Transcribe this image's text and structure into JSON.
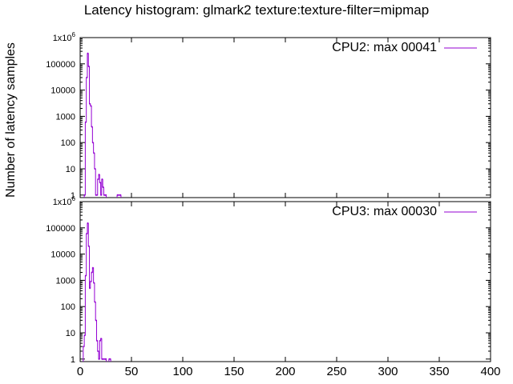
{
  "chart_data": {
    "type": "line",
    "title": "Latency histogram:  glmark2 texture:texture-filter=mipmap",
    "ylabel": "Number of latency samples",
    "xlabel": "",
    "x_scale": "linear",
    "y_scale": "log",
    "xlim": [
      0,
      400
    ],
    "ylim": [
      0.8,
      1000000
    ],
    "x_ticks": [
      "0",
      "50",
      "100",
      "150",
      "200",
      "250",
      "300",
      "350",
      "400"
    ],
    "y_ticks": [
      "1",
      "10",
      "100",
      "1000",
      "10000",
      "100000",
      "1x10^6"
    ],
    "y_top_tick_base": "1x10",
    "y_top_tick_exp": "6",
    "grid": false,
    "legend_position": "top-right",
    "panels": [
      {
        "series": [
          {
            "name": "CPU2: max 00041",
            "color": "#9400D3",
            "points": [
              [
                4,
                1
              ],
              [
                5,
                600
              ],
              [
                6,
                30000
              ],
              [
                7,
                250000
              ],
              [
                8,
                80000
              ],
              [
                9,
                3000
              ],
              [
                10,
                2500
              ],
              [
                11,
                400
              ],
              [
                12,
                100
              ],
              [
                13,
                40
              ],
              [
                14,
                10
              ],
              [
                15,
                1
              ],
              [
                16,
                1
              ],
              [
                17,
                4
              ],
              [
                18,
                6
              ],
              [
                19,
                3
              ],
              [
                20,
                1
              ],
              [
                21,
                4
              ],
              [
                22,
                2
              ],
              [
                23,
                1
              ],
              [
                24,
                1
              ],
              [
                25,
                1
              ],
              [
                36,
                1
              ],
              [
                37,
                1
              ],
              [
                38,
                1
              ],
              [
                39,
                1
              ]
            ]
          }
        ]
      },
      {
        "series": [
          {
            "name": "CPU3: max 00030",
            "color": "#9400D3",
            "points": [
              [
                3,
                3
              ],
              [
                4,
                8
              ],
              [
                5,
                1500
              ],
              [
                6,
                60000
              ],
              [
                7,
                150000
              ],
              [
                8,
                20000
              ],
              [
                9,
                500
              ],
              [
                10,
                900
              ],
              [
                11,
                2000
              ],
              [
                12,
                3000
              ],
              [
                13,
                800
              ],
              [
                14,
                150
              ],
              [
                15,
                30
              ],
              [
                16,
                5
              ],
              [
                17,
                2
              ],
              [
                18,
                1
              ],
              [
                19,
                5
              ],
              [
                20,
                6
              ],
              [
                21,
                1
              ],
              [
                22,
                1
              ],
              [
                23,
                1
              ],
              [
                24,
                1
              ],
              [
                25,
                1
              ],
              [
                28,
                1
              ],
              [
                29,
                1
              ]
            ]
          }
        ]
      }
    ]
  }
}
